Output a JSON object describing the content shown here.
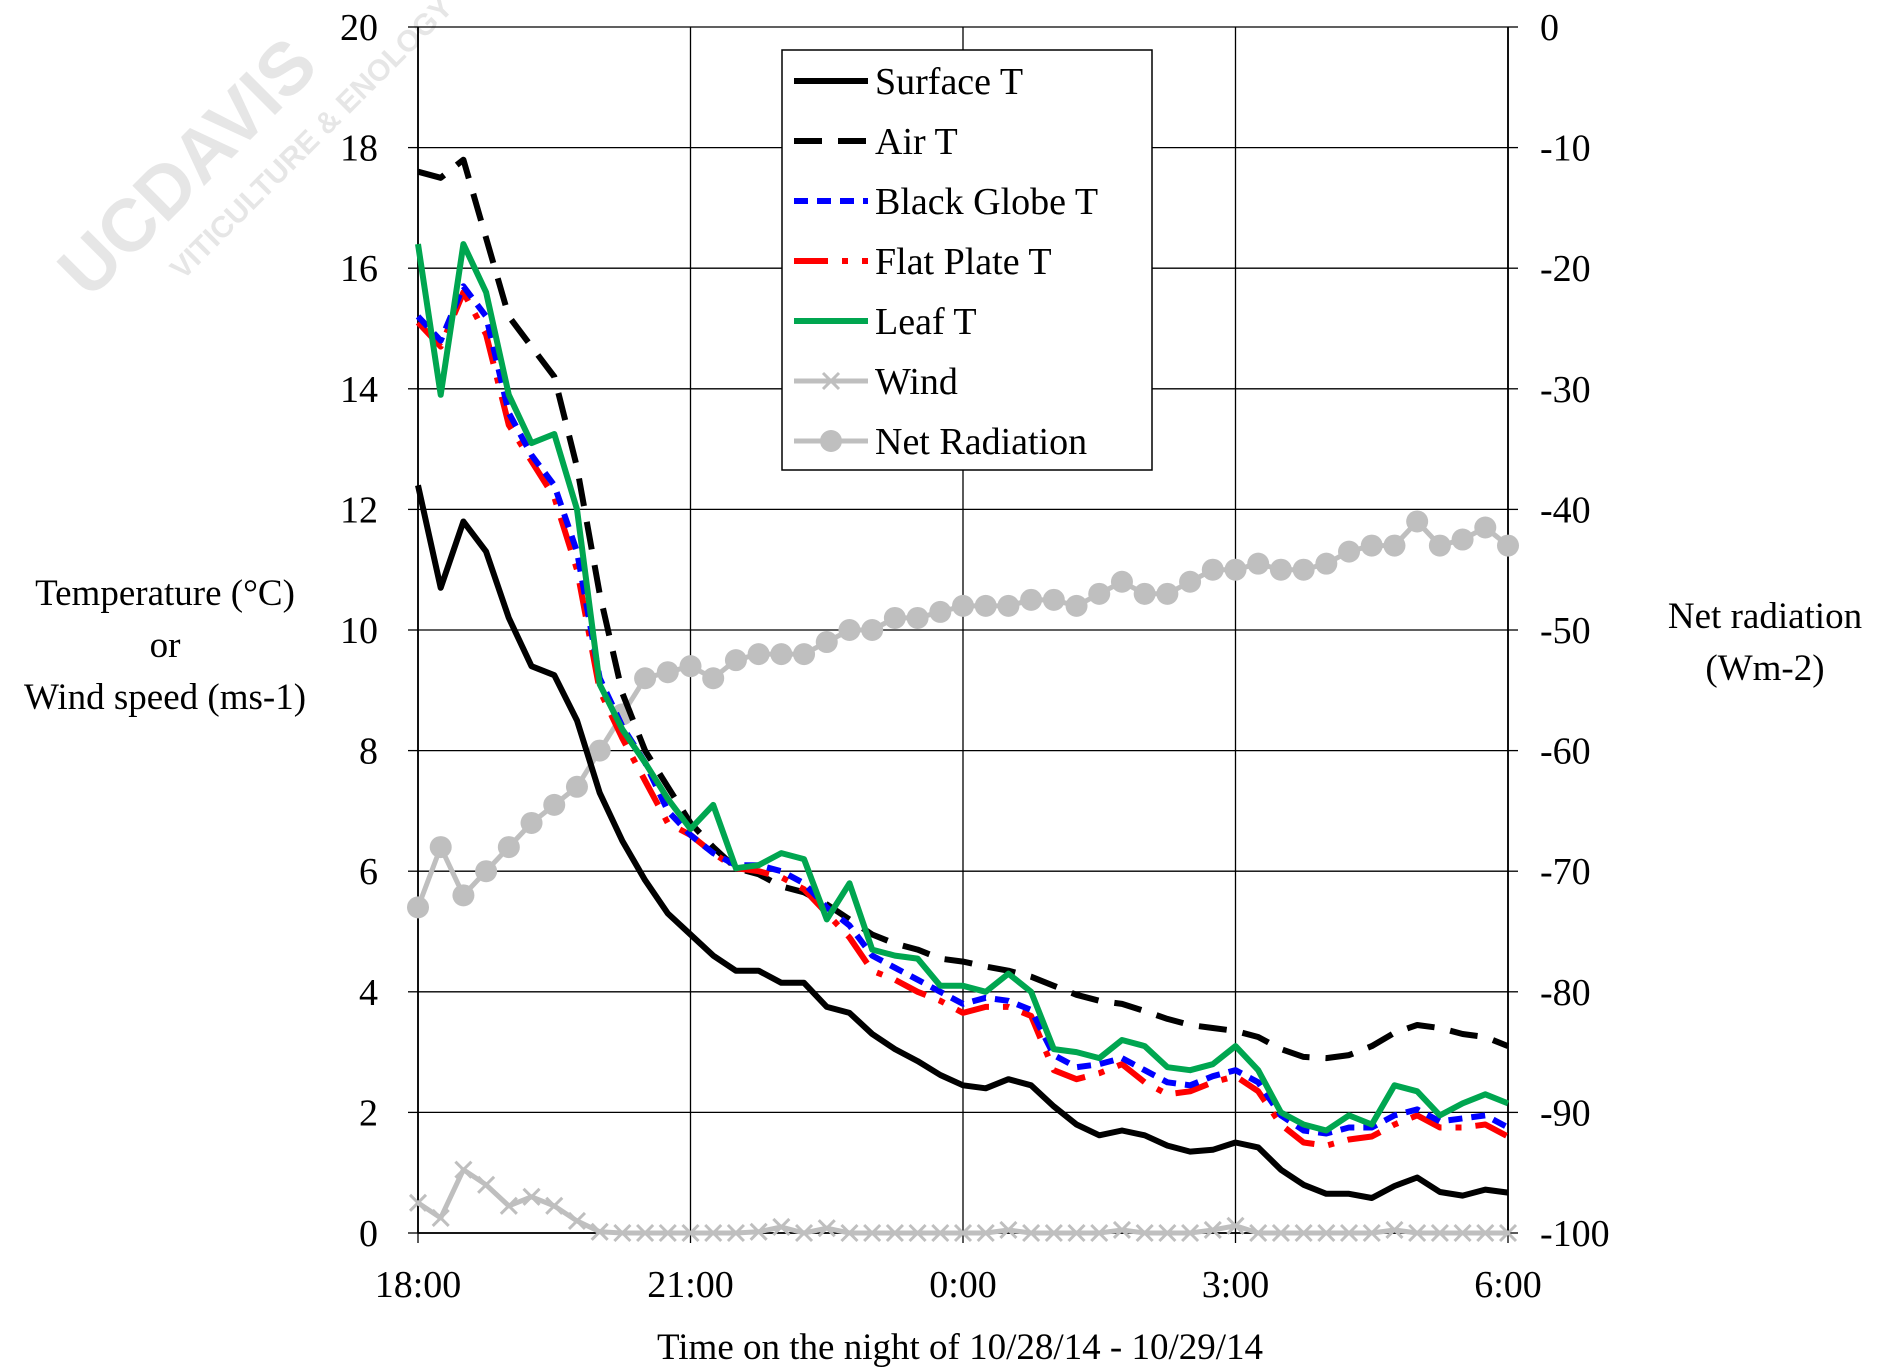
{
  "watermark": {
    "line1": "UCDAVIS",
    "line2": "VITICULTURE & ENOLOGY"
  },
  "chart_data": {
    "type": "line",
    "xlabel": "Time on the night of 10/28/14 - 10/29/14",
    "ylabel_left": [
      "Temperature (°C)",
      "or",
      "Wind speed (ms-1)"
    ],
    "ylabel_right": [
      "Net radiation",
      "(Wm-2)"
    ],
    "x_unit": "hours since 18:00 (15-minute intervals)",
    "xlim": [
      0,
      12
    ],
    "x_ticks": [
      0,
      3,
      6,
      9,
      12
    ],
    "x_tick_labels": [
      "18:00",
      "21:00",
      "0:00",
      "3:00",
      "6:00"
    ],
    "ylim_left": [
      0,
      20
    ],
    "y_ticks_left": [
      0,
      2,
      4,
      6,
      8,
      10,
      12,
      14,
      16,
      18,
      20
    ],
    "ylim_right": [
      -100,
      0
    ],
    "y_ticks_right": [
      -100,
      -90,
      -80,
      -70,
      -60,
      -50,
      -40,
      -30,
      -20,
      -10,
      0
    ],
    "grid": true,
    "legend_position": "top-center",
    "series": [
      {
        "name": "Surface T",
        "axis": "left",
        "color": "#000000",
        "style": "solid",
        "values": [
          12.4,
          10.7,
          11.8,
          11.3,
          10.2,
          9.4,
          9.25,
          8.5,
          7.3,
          6.5,
          5.85,
          5.3,
          4.95,
          4.6,
          4.35,
          4.35,
          4.15,
          4.15,
          3.75,
          3.65,
          3.3,
          3.05,
          2.85,
          2.62,
          2.45,
          2.4,
          2.55,
          2.45,
          2.1,
          1.8,
          1.62,
          1.7,
          1.62,
          1.45,
          1.35,
          1.38,
          1.5,
          1.42,
          1.05,
          0.8,
          0.65,
          0.65,
          0.58,
          0.78,
          0.92,
          0.68,
          0.62,
          0.72,
          0.67
        ]
      },
      {
        "name": "Air T",
        "axis": "left",
        "color": "#000000",
        "style": "dashed",
        "values": [
          17.6,
          17.5,
          17.8,
          16.5,
          15.2,
          14.7,
          14.2,
          12.7,
          10.6,
          8.95,
          8.0,
          7.4,
          6.8,
          6.4,
          6.05,
          5.95,
          5.75,
          5.65,
          5.45,
          5.2,
          4.95,
          4.8,
          4.7,
          4.55,
          4.5,
          4.42,
          4.35,
          4.25,
          4.1,
          3.95,
          3.85,
          3.8,
          3.68,
          3.55,
          3.45,
          3.4,
          3.35,
          3.25,
          3.05,
          2.92,
          2.9,
          2.95,
          3.1,
          3.32,
          3.45,
          3.4,
          3.3,
          3.25,
          3.1
        ]
      },
      {
        "name": "Black Globe T",
        "axis": "left",
        "color": "#0000ff",
        "style": "dotted",
        "values": [
          15.2,
          14.8,
          15.7,
          15.2,
          13.6,
          12.9,
          12.4,
          11.3,
          9.2,
          8.4,
          7.8,
          7.0,
          6.6,
          6.3,
          6.1,
          6.1,
          6.0,
          5.8,
          5.4,
          5.1,
          4.6,
          4.4,
          4.2,
          4.0,
          3.8,
          3.9,
          3.85,
          3.7,
          2.95,
          2.75,
          2.8,
          2.9,
          2.7,
          2.5,
          2.45,
          2.6,
          2.7,
          2.5,
          1.95,
          1.7,
          1.65,
          1.75,
          1.75,
          1.95,
          2.05,
          1.85,
          1.9,
          1.95,
          1.75
        ]
      },
      {
        "name": "Flat Plate T",
        "axis": "left",
        "color": "#ff0000",
        "style": "dashdot",
        "values": [
          15.1,
          14.7,
          15.6,
          14.9,
          13.4,
          12.8,
          12.2,
          11.0,
          9.0,
          8.2,
          7.5,
          6.8,
          6.6,
          6.3,
          6.05,
          6.0,
          5.9,
          5.7,
          5.3,
          4.9,
          4.35,
          4.2,
          4.0,
          3.85,
          3.65,
          3.75,
          3.75,
          3.6,
          2.7,
          2.55,
          2.65,
          2.8,
          2.5,
          2.3,
          2.35,
          2.5,
          2.6,
          2.35,
          1.8,
          1.5,
          1.45,
          1.55,
          1.6,
          1.8,
          1.95,
          1.75,
          1.75,
          1.8,
          1.6
        ]
      },
      {
        "name": "Leaf T",
        "axis": "left",
        "color": "#00a650",
        "style": "solid",
        "values": [
          16.4,
          13.9,
          16.4,
          15.6,
          13.9,
          13.1,
          13.25,
          12.0,
          9.1,
          8.35,
          7.8,
          7.2,
          6.7,
          7.1,
          6.05,
          6.1,
          6.3,
          6.2,
          5.2,
          5.8,
          4.7,
          4.6,
          4.55,
          4.1,
          4.1,
          4.0,
          4.3,
          4.0,
          3.05,
          3.0,
          2.9,
          3.2,
          3.1,
          2.75,
          2.7,
          2.8,
          3.1,
          2.7,
          2.0,
          1.8,
          1.7,
          1.95,
          1.8,
          2.45,
          2.35,
          1.95,
          2.15,
          2.3,
          2.15
        ]
      },
      {
        "name": "Wind",
        "axis": "left",
        "color": "#bfbfbf",
        "style": "solid-x",
        "values": [
          0.5,
          0.25,
          1.05,
          0.8,
          0.45,
          0.6,
          0.45,
          0.2,
          0.02,
          0.0,
          0.0,
          0.0,
          0.0,
          0.0,
          0.0,
          0.02,
          0.1,
          0.0,
          0.08,
          0.0,
          0.0,
          0.0,
          0.0,
          0.0,
          0.0,
          0.0,
          0.05,
          0.0,
          0.0,
          0.0,
          0.0,
          0.05,
          0.0,
          0.0,
          0.0,
          0.05,
          0.12,
          0.0,
          0.0,
          0.0,
          0.0,
          0.0,
          0.0,
          0.05,
          0.0,
          0.0,
          0.0,
          0.0,
          0.0
        ]
      },
      {
        "name": "Net Radiation",
        "axis": "right",
        "color": "#bfbfbf",
        "style": "solid-circle",
        "values": [
          -73,
          -68,
          -72,
          -70,
          -68,
          -66,
          -64.5,
          -63,
          -60,
          -57,
          -54,
          -53.5,
          -53,
          -54,
          -52.5,
          -52,
          -52,
          -52,
          -51,
          -50,
          -50,
          -49,
          -49,
          -48.5,
          -48,
          -48,
          -48,
          -47.5,
          -47.5,
          -48,
          -47,
          -46,
          -47,
          -47,
          -46,
          -45,
          -45,
          -44.5,
          -45,
          -45,
          -44.5,
          -43.5,
          -43,
          -43,
          -41,
          -43,
          -42.5,
          -41.5,
          -43
        ]
      }
    ]
  }
}
